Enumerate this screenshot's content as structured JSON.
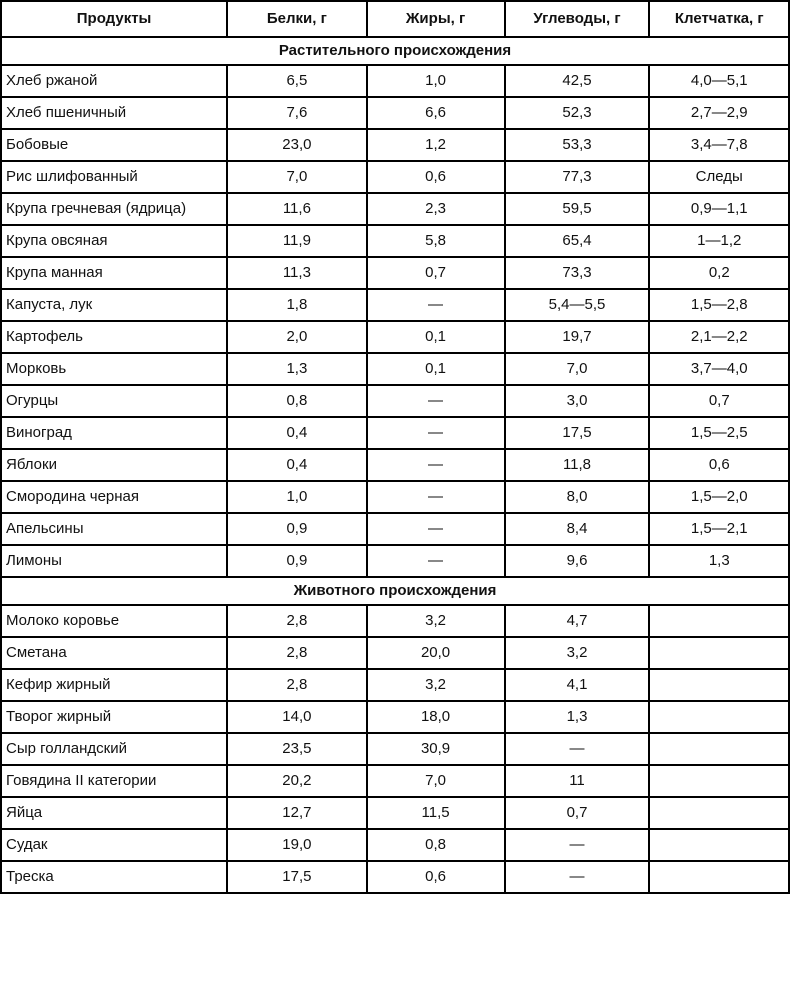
{
  "table": {
    "columns": [
      "Продукты",
      "Белки, г",
      "Жиры, г",
      "Углеводы, г",
      "Клетчатка, г"
    ],
    "sections": [
      {
        "title": "Растительного происхождения",
        "rows": [
          [
            "Хлеб ржаной",
            "6,5",
            "1,0",
            "42,5",
            "4,0—5,1"
          ],
          [
            "Хлеб пшеничный",
            "7,6",
            "6,6",
            "52,3",
            "2,7—2,9"
          ],
          [
            "Бобовые",
            "23,0",
            "1,2",
            "53,3",
            "3,4—7,8"
          ],
          [
            "Рис шлифованный",
            "7,0",
            "0,6",
            "77,3",
            "Следы"
          ],
          [
            "Крупа гречневая (ядрица)",
            "11,6",
            "2,3",
            "59,5",
            "0,9—1,1"
          ],
          [
            "Крупа овсяная",
            "11,9",
            "5,8",
            "65,4",
            "1—1,2"
          ],
          [
            "Крупа манная",
            "11,3",
            "0,7",
            "73,3",
            "0,2"
          ],
          [
            "Капуста, лук",
            "1,8",
            "—",
            "5,4—5,5",
            "1,5—2,8"
          ],
          [
            "Картофель",
            "2,0",
            "0,1",
            "19,7",
            "2,1—2,2"
          ],
          [
            "Морковь",
            "1,3",
            "0,1",
            "7,0",
            "3,7—4,0"
          ],
          [
            "Огурцы",
            "0,8",
            "—",
            "3,0",
            "0,7"
          ],
          [
            "Виноград",
            "0,4",
            "—",
            "17,5",
            "1,5—2,5"
          ],
          [
            "Яблоки",
            "0,4",
            "—",
            "11,8",
            "0,6"
          ],
          [
            "Смородина черная",
            "1,0",
            "—",
            "8,0",
            "1,5—2,0"
          ],
          [
            "Апельсины",
            "0,9",
            "—",
            "8,4",
            "1,5—2,1"
          ],
          [
            "Лимоны",
            "0,9",
            "—",
            "9,6",
            "1,3"
          ]
        ]
      },
      {
        "title": "Животного происхождения",
        "rows": [
          [
            "Молоко коровье",
            "2,8",
            "3,2",
            "4,7",
            ""
          ],
          [
            "Сметана",
            "2,8",
            "20,0",
            "3,2",
            ""
          ],
          [
            "Кефир жирный",
            "2,8",
            "3,2",
            "4,1",
            ""
          ],
          [
            "Творог жирный",
            "14,0",
            "18,0",
            "1,3",
            ""
          ],
          [
            "Сыр голландский",
            "23,5",
            "30,9",
            "—",
            ""
          ],
          [
            "Говядина II категории",
            "20,2",
            "7,0",
            "11",
            ""
          ],
          [
            "Яйца",
            "12,7",
            "11,5",
            "0,7",
            ""
          ],
          [
            "Судак",
            "19,0",
            "0,8",
            "—",
            ""
          ],
          [
            "Треска",
            "17,5",
            "0,6",
            "—",
            ""
          ]
        ]
      }
    ]
  }
}
